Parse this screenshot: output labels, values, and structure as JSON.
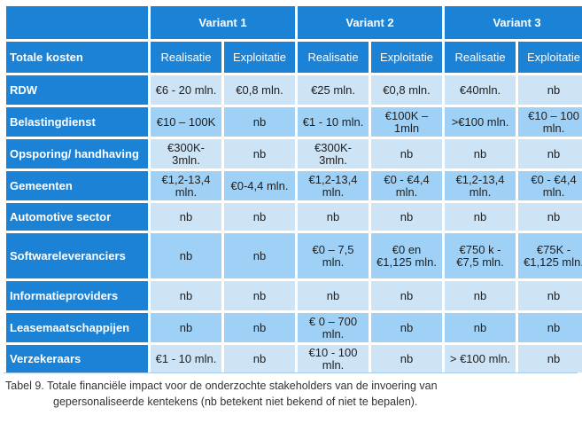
{
  "table": {
    "variants": [
      "Variant 1",
      "Variant 2",
      "Variant 3"
    ],
    "row_header_title": "Totale kosten",
    "sub_columns": [
      "Realisatie",
      "Exploitatie",
      "Realisatie",
      "Exploitatie",
      "Realisatie",
      "Exploitatie"
    ],
    "rows": [
      {
        "label": "RDW",
        "cells": [
          "€6 - 20 mln.",
          "€0,8 mln.",
          "€25 mln.",
          "€0,8 mln.",
          "€40mln.",
          "nb"
        ]
      },
      {
        "label": "Belastingdienst",
        "cells": [
          "€10 – 100K",
          "nb",
          "€1 - 10 mln.",
          "€100K – 1mln",
          ">€100 mln.",
          "€10 – 100 mln."
        ]
      },
      {
        "label": "Opsporing/ handhaving",
        "cells": [
          "€300K-3mln.",
          "nb",
          "€300K-3mln.",
          "nb",
          "nb",
          "nb"
        ]
      },
      {
        "label": "Gemeenten",
        "cells": [
          "€1,2-13,4 mln.",
          "€0-4,4 mln.",
          "€1,2-13,4 mln.",
          "€0 - €4,4 mln.",
          "€1,2-13,4 mln.",
          "€0 - €4,4 mln."
        ]
      },
      {
        "label": "Automotive sector",
        "cells": [
          "nb",
          "nb",
          "nb",
          "nb",
          "nb",
          "nb"
        ]
      },
      {
        "label": "Softwareleveranciers",
        "cells": [
          "nb",
          "nb",
          "€0 – 7,5 mln.",
          "€0 en €1,125 mln.",
          "€750 k - €7,5 mln.",
          "€75K - €1,125 mln."
        ]
      },
      {
        "label": "Informatieproviders",
        "cells": [
          "nb",
          "nb",
          "nb",
          "nb",
          "nb",
          "nb"
        ]
      },
      {
        "label": "Leasemaatschappijen",
        "cells": [
          "nb",
          "nb",
          "€ 0 – 700 mln.",
          "nb",
          "nb",
          "nb"
        ]
      },
      {
        "label": "Verzekeraars",
        "cells": [
          "€1 - 10 mln.",
          "nb",
          "€10 - 100 mln.",
          "nb",
          "> €100 mln.",
          "nb"
        ]
      }
    ]
  },
  "caption": {
    "line1": "Tabel 9. Totale financiële impact voor de onderzochte stakeholders van de invoering van",
    "line2": "gepersonaliseerde kentekens (nb betekent niet bekend of niet te bepalen)."
  },
  "colors": {
    "header_blue": "#1c82d6",
    "row_light": "#cde3f6",
    "row_dark": "#9fd0f5"
  }
}
